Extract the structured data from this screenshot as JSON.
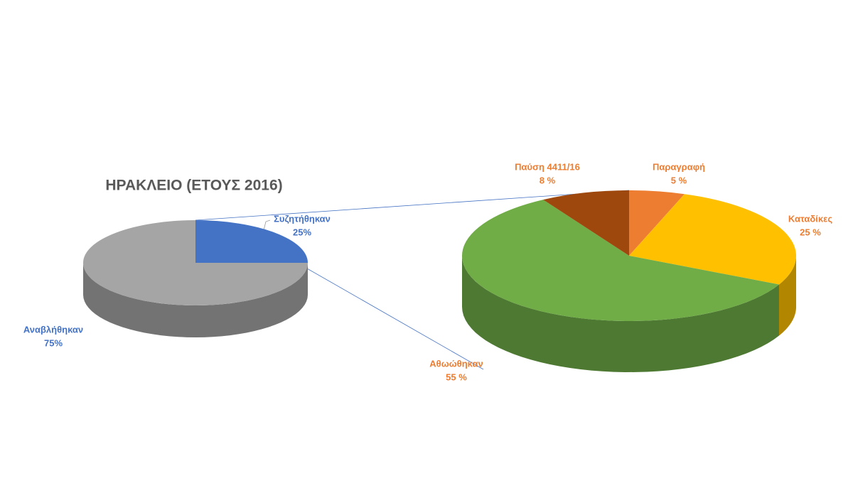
{
  "chart_data": [
    {
      "type": "pie",
      "title": "ΗΡΑΚΛΕΙΟ (ΕΤΟΥΣ 2016)",
      "categories": [
        "Συζητήθηκαν",
        "Αναβλήθηκαν"
      ],
      "values": [
        25,
        75
      ],
      "value_labels": [
        "25%",
        "75%"
      ],
      "colors": [
        "#4472c4",
        "#a5a5a5"
      ],
      "label_color": "#4472c4"
    },
    {
      "type": "pie",
      "categories": [
        "Παραγραφή",
        "Καταδίκες",
        "Αθωώθηκαν",
        "Παύση 4411/16"
      ],
      "values": [
        5,
        25,
        55,
        8
      ],
      "value_labels": [
        "5 %",
        "25 %",
        "55 %",
        "8 %"
      ],
      "colors": [
        "#ed7d31",
        "#ffc000",
        "#70ad47",
        "#9e480e"
      ],
      "label_color": "#ed7d31"
    }
  ]
}
